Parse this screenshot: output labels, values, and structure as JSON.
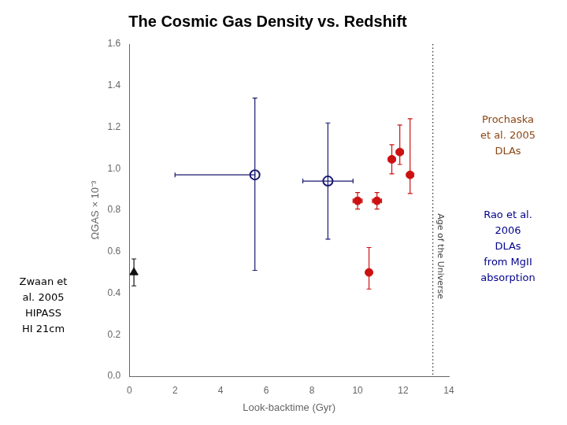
{
  "chart_data": {
    "type": "scatter",
    "title": "The Cosmic Gas Density vs. Redshift",
    "xlabel": "Look-backtime (Gyr)",
    "ylabel": "ΩGAS × 10⁻³",
    "xlim": [
      0,
      14
    ],
    "ylim": [
      0,
      1.6
    ],
    "xticks": [
      0,
      2,
      4,
      6,
      8,
      10,
      12,
      14
    ],
    "yticks": [
      {
        "value": 0,
        "label": "0.0"
      },
      0.2,
      0.4,
      0.6,
      0.8,
      {
        "value": 1.0,
        "label": "1.0"
      },
      1.2,
      1.4,
      1.6
    ],
    "grid": false,
    "series": [
      {
        "color": "#111111",
        "marker": "triangle",
        "x": [
          0.2
        ],
        "values": [
          0.5
        ],
        "yerr_lo": [
          0.065
        ],
        "yerr_hi": [
          0.065
        ]
      },
      {
        "color": "#191970",
        "marker": "open_circle",
        "x": [
          5.5,
          8.7
        ],
        "values": [
          0.97,
          0.94
        ],
        "xerr_lo": [
          3.5,
          1.1
        ],
        "xerr_hi": [
          0.0,
          1.1
        ],
        "yerr_lo": [
          0.46,
          0.28
        ],
        "yerr_hi": [
          0.37,
          0.28
        ]
      },
      {
        "color": "#cc1111",
        "marker": "circle",
        "x": [
          10.0,
          10.5,
          10.85,
          11.5,
          11.85,
          12.3
        ],
        "values": [
          0.845,
          0.5,
          0.845,
          1.045,
          1.08,
          0.97
        ],
        "xerr_lo": [
          0.2,
          0.0,
          0.2,
          0.15,
          0.15,
          0.15
        ],
        "xerr_hi": [
          0.2,
          0.0,
          0.2,
          0.15,
          0.15,
          0.15
        ],
        "yerr_lo": [
          0.04,
          0.08,
          0.04,
          0.07,
          0.06,
          0.09
        ],
        "yerr_hi": [
          0.04,
          0.12,
          0.04,
          0.07,
          0.13,
          0.27
        ]
      }
    ],
    "vlines": [
      {
        "x": 13.3,
        "text": "Age of the Universe",
        "line_style": "dotted"
      }
    ],
    "annotations": [
      {
        "text": "Prochaska\net al. 2005\nDLAs",
        "color": "#8B4513"
      },
      {
        "text": "Rao et al.\n2006\nDLAs\nfrom MgII\nabsorption",
        "color": "#00008B"
      },
      {
        "text": "Zwaan et\nal. 2005\nHIPASS\nHI 21cm",
        "color": "#000000"
      }
    ]
  }
}
